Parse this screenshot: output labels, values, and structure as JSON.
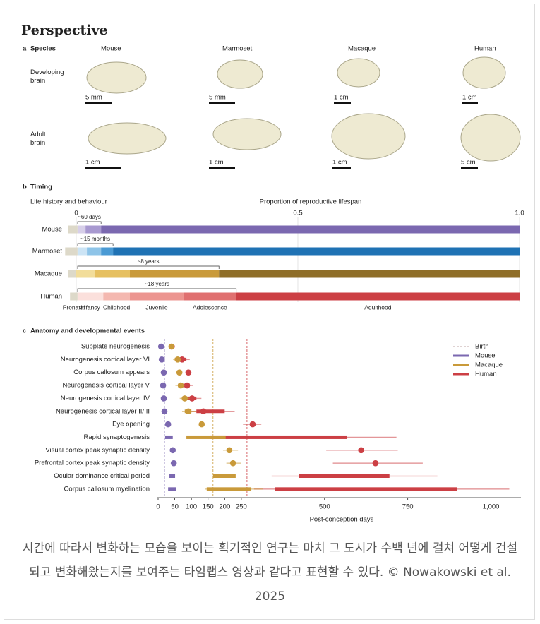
{
  "header": {
    "title": "Perspective"
  },
  "panel_a": {
    "letter": "a",
    "title": "Species",
    "species": [
      "Mouse",
      "Marmoset",
      "Macaque",
      "Human"
    ],
    "rows": [
      "Developing brain",
      "Adult brain"
    ],
    "scale_bars": {
      "developing": [
        "5 mm",
        "5 mm",
        "1 cm",
        "1 cm"
      ],
      "adult": [
        "1 cm",
        "1 cm",
        "1 cm",
        "5 cm"
      ]
    }
  },
  "panel_b": {
    "letter": "b",
    "title": "Timing"
  },
  "panel_c": {
    "letter": "c",
    "title": "Anatomy and developmental events"
  },
  "chart_data": [
    {
      "type": "gantt",
      "title": "Life history and behaviour",
      "xlabel": "Proportion of reproductive lifespan",
      "xlim": [
        0,
        1
      ],
      "xticks": [
        0,
        0.5,
        {
          "value": 1,
          "label": "1.0"
        }
      ],
      "grid": true,
      "categories": [
        "Mouse",
        "Marmoset",
        "Macaque",
        "Human"
      ],
      "rows": [
        {
          "span_label": "~60 days",
          "span_end": 0.056,
          "segments": [
            {
              "start": -0.018,
              "end": 0.003,
              "color": "#ddd9c9"
            },
            {
              "start": 0.003,
              "end": 0.021,
              "color": "#d7cfe9"
            },
            {
              "start": 0.021,
              "end": 0.056,
              "color": "#a899d0"
            },
            {
              "start": 0.056,
              "end": 1,
              "color": "#7b68b0"
            }
          ]
        },
        {
          "span_label": "~15 months",
          "span_end": 0.083,
          "segments": [
            {
              "start": -0.025,
              "end": 0.003,
              "color": "#ddd9c9"
            },
            {
              "start": 0.003,
              "end": 0.024,
              "color": "#cce4f5"
            },
            {
              "start": 0.024,
              "end": 0.056,
              "color": "#8ec4e8"
            },
            {
              "start": 0.056,
              "end": 0.083,
              "color": "#4a9ad4"
            },
            {
              "start": 0.083,
              "end": 1,
              "color": "#1f72b4"
            }
          ]
        },
        {
          "span_label": "~8 years",
          "span_end": 0.322,
          "segments": [
            {
              "start": -0.018,
              "end": 0,
              "color": "#ddd9c9"
            },
            {
              "start": 0,
              "end": 0.043,
              "color": "#f2dd9a"
            },
            {
              "start": 0.043,
              "end": 0.121,
              "color": "#e6c060"
            },
            {
              "start": 0.121,
              "end": 0.322,
              "color": "#c99a3a"
            },
            {
              "start": 0.322,
              "end": 1,
              "color": "#8f6e28"
            }
          ]
        },
        {
          "span_label": "~18 years",
          "span_end": 0.361,
          "segments": [
            {
              "name": "Prenatal",
              "start": -0.014,
              "end": 0.003,
              "color": "#ddd9c9"
            },
            {
              "name": "Infancy",
              "start": 0.003,
              "end": 0.061,
              "color": "#fbe0dc"
            },
            {
              "name": "Childhood",
              "start": 0.061,
              "end": 0.121,
              "color": "#f4b8b0"
            },
            {
              "name": "Juvenile",
              "start": 0.121,
              "end": 0.242,
              "color": "#ec9590"
            },
            {
              "name": "Adolescence",
              "start": 0.242,
              "end": 0.361,
              "color": "#e07070"
            },
            {
              "name": "Adulthood",
              "start": 0.361,
              "end": 1,
              "color": "#cc3f44"
            }
          ]
        }
      ]
    },
    {
      "type": "dot-range",
      "xlabel": "Post-conception days",
      "birth_label": "Birth",
      "xlim": [
        0,
        1090
      ],
      "xticks": [
        0,
        50,
        100,
        150,
        200,
        250,
        500,
        750,
        {
          "value": 1000,
          "label": "1,000"
        }
      ],
      "categories": [
        "Subplate neurogenesis",
        "Neurogenesis cortical layer VI",
        "Corpus callosum appears",
        "Neurogenesis cortical layer V",
        "Neurogenesis cortical layer IV",
        "Neurogenesis cortical layer II/III",
        "Eye opening",
        "Rapid synaptogenesis",
        "Visual cortex peak synaptic density",
        "Prefrontal cortex peak synaptic density",
        "Ocular dominance critical period",
        "Corpus callosum myelination"
      ],
      "series": [
        {
          "name": "Mouse",
          "color": "#7b68b0",
          "birth": 19,
          "values": [
            9,
            11,
            17,
            15,
            17,
            19,
            30,
            null,
            44,
            47,
            null,
            null
          ],
          "inner": [
            null,
            null,
            null,
            null,
            null,
            null,
            null,
            [
              21,
              44
            ],
            null,
            null,
            [
              34,
              51
            ],
            [
              30,
              55
            ]
          ],
          "outer": [
            null,
            null,
            null,
            null,
            null,
            null,
            null,
            null,
            null,
            null,
            null,
            null
          ]
        },
        {
          "name": "Macaque",
          "color": "#c99a3a",
          "birth": 165,
          "values": [
            40,
            59,
            64,
            68,
            80,
            91,
            131,
            null,
            214,
            225,
            null,
            null
          ],
          "inner": [
            null,
            [
              50,
              63
            ],
            null,
            [
              60,
              75
            ],
            [
              73,
              88
            ],
            [
              80,
              100
            ],
            null,
            [
              85,
              203
            ],
            null,
            null,
            [
              165,
              233
            ],
            [
              146,
              280
            ]
          ],
          "outer": [
            null,
            [
              45,
              70
            ],
            null,
            [
              52,
              80
            ],
            [
              65,
              95
            ],
            [
              72,
              115
            ],
            null,
            null,
            [
              195,
              240
            ],
            [
              205,
              250
            ],
            null,
            [
              140,
              314
            ]
          ]
        },
        {
          "name": "Human",
          "color": "#cc3f44",
          "birth": 267,
          "values": [
            41,
            72,
            91,
            87,
            102,
            136,
            284,
            null,
            610,
            653,
            null,
            null
          ],
          "inner": [
            null,
            [
              55,
              85
            ],
            null,
            [
              72,
              95
            ],
            [
              85,
              115
            ],
            [
              115,
              200
            ],
            null,
            [
              155,
              568
            ],
            null,
            null,
            [
              424,
              695
            ],
            [
              350,
              898
            ]
          ],
          "outer": [
            null,
            [
              50,
              95
            ],
            null,
            [
              65,
              105
            ],
            [
              75,
              130
            ],
            [
              100,
              230
            ],
            [
              255,
              310
            ],
            [
              130,
              716
            ],
            [
              505,
              720
            ],
            [
              525,
              795
            ],
            [
              341,
              839
            ],
            [
              288,
              1055
            ]
          ]
        }
      ]
    }
  ],
  "caption": "시간에 따라서 변화하는 모습을 보이는 획기적인 연구는 마치 그 도시가 수백 년에 걸쳐 어떻게 건설되고 변화해왔는지를 보여주는 타임랩스 영상과 같다고 표현할 수 있다. © Nowakowski et al. 2025"
}
